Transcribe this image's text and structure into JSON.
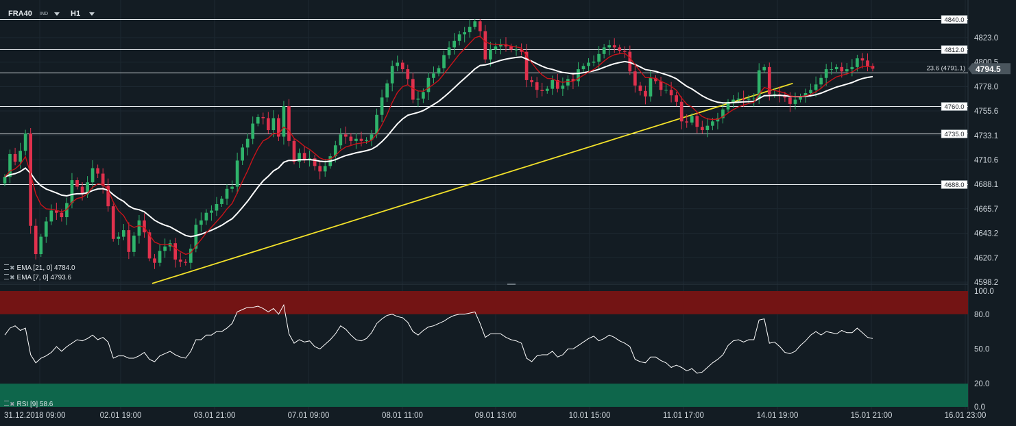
{
  "header": {
    "symbol": "FRA40",
    "symbol_tag": "IND",
    "timeframe": "H1"
  },
  "indicators": {
    "ema21": {
      "label": "EMA [21, 0]",
      "value": "4784.0",
      "color": "#ffffff"
    },
    "ema7": {
      "label": "EMA [7, 0]",
      "value": "4793.6",
      "color": "#c8131a"
    },
    "rsi": {
      "label": "RSI [9]",
      "value": "58.6",
      "color": "#ffffff"
    }
  },
  "colors": {
    "bull": "#2fb36b",
    "bear": "#e0314d",
    "background": "#131c23",
    "trendline": "#f2e12a",
    "overbought_zone": "#731414",
    "oversold_zone": "#0e664b"
  },
  "chart_data": [
    {
      "type": "candlestick",
      "title": "",
      "price_axis_ticks": [
        "4823.0",
        "4800.5",
        "4778.0",
        "4755.6",
        "4733.1",
        "4710.6",
        "4688.1",
        "4665.7",
        "4643.2",
        "4620.7",
        "4598.2"
      ],
      "ylim": [
        4598.2,
        4840.0
      ],
      "current_price": "4794.5",
      "time_axis_labels": [
        "31.12.2018 09:00",
        "02.01 19:00",
        "03.01 21:00",
        "07.01 09:00",
        "08.01 11:00",
        "09.01 13:00",
        "10.01 15:00",
        "11.01 17:00",
        "14.01 19:00",
        "15.01 21:00",
        "16.01 23:00"
      ],
      "horizontal_levels": [
        {
          "label": "4840.0",
          "value": 4840.0
        },
        {
          "label": "4812.0",
          "value": 4812.0
        },
        {
          "label": "4760.0",
          "value": 4760.0
        },
        {
          "label": "4735.0",
          "value": 4735.0
        },
        {
          "label": "4688.0",
          "value": 4688.0
        }
      ],
      "fib_level": {
        "label": "23.6 (4791.1)",
        "value": 4791.1
      },
      "trendline": {
        "start": {
          "bar": 0,
          "value": 4597
        },
        "end": {
          "bar": 126,
          "value": 4781
        }
      },
      "series": [
        {
          "name": "FRA40",
          "close": [
            4695,
            4716,
            4709,
            4719,
            4735,
            4650,
            4624,
            4640,
            4654,
            4664,
            4662,
            4658,
            4671,
            4692,
            4686,
            4679,
            4690,
            4703,
            4698,
            4687,
            4668,
            4638,
            4640,
            4646,
            4626,
            4641,
            4655,
            4644,
            4620,
            4616,
            4627,
            4631,
            4634,
            4619,
            4617,
            4616,
            4629,
            4651,
            4655,
            4662,
            4664,
            4670,
            4675,
            4684,
            4686,
            4710,
            4722,
            4730,
            4744,
            4750,
            4749,
            4738,
            4749,
            4732,
            4760,
            4728,
            4709,
            4717,
            4711,
            4712,
            4705,
            4700,
            4705,
            4714,
            4724,
            4734,
            4732,
            4728,
            4730,
            4728,
            4729,
            4734,
            4752,
            4768,
            4781,
            4797,
            4800,
            4794,
            4785,
            4766,
            4767,
            4773,
            4786,
            4790,
            4795,
            4807,
            4814,
            4820,
            4826,
            4828,
            4833,
            4838,
            4829,
            4803,
            4812,
            4815,
            4817,
            4815,
            4812,
            4812,
            4810,
            4784,
            4782,
            4775,
            4774,
            4776,
            4784,
            4776,
            4779,
            4785,
            4783,
            4794,
            4797,
            4800,
            4801,
            4808,
            4814,
            4816,
            4814,
            4811,
            4810,
            4792,
            4779,
            4774,
            4769,
            4786,
            4783,
            4775,
            4775,
            4770,
            4764,
            4746,
            4745,
            4751,
            4741,
            4738,
            4742,
            4746,
            4749,
            4757,
            4764,
            4766,
            4767,
            4766,
            4767,
            4767,
            4793,
            4796,
            4771,
            4771,
            4770,
            4768,
            4762,
            4766,
            4769,
            4772,
            4775,
            4780,
            4786,
            4794,
            4794,
            4796,
            4792,
            4794,
            4796,
            4804,
            4802,
            4797,
            4794.5
          ]
        },
        {
          "name": "EMA [7, 0]",
          "values": []
        },
        {
          "name": "EMA [21, 0]",
          "values": []
        }
      ]
    },
    {
      "type": "line",
      "title": "",
      "ylim": [
        0,
        100
      ],
      "y_axis_ticks": [
        "100.0",
        "80.0",
        "50.0",
        "20.0",
        "0.0"
      ],
      "zones": {
        "overbought": [
          80,
          100
        ],
        "oversold": [
          0,
          20
        ]
      },
      "series": [
        {
          "name": "RSI [9]",
          "values": [
            62,
            68,
            70,
            66,
            68,
            45,
            38,
            42,
            44,
            47,
            52,
            48,
            52,
            55,
            58,
            57,
            59,
            62,
            58,
            60,
            56,
            42,
            44,
            44,
            42,
            42,
            44,
            47,
            41,
            39,
            44,
            46,
            48,
            45,
            43,
            42,
            48,
            58,
            58,
            62,
            62,
            65,
            65,
            68,
            72,
            82,
            84,
            86,
            86,
            87,
            85,
            82,
            85,
            80,
            88,
            63,
            55,
            58,
            56,
            57,
            52,
            50,
            54,
            58,
            63,
            70,
            67,
            62,
            58,
            57,
            59,
            64,
            72,
            76,
            79,
            80,
            78,
            77,
            73,
            65,
            62,
            66,
            69,
            70,
            72,
            74,
            77,
            79,
            80,
            80,
            81,
            82,
            72,
            60,
            63,
            63,
            63,
            60,
            58,
            57,
            55,
            42,
            39,
            44,
            45,
            45,
            48,
            43,
            45,
            50,
            50,
            53,
            56,
            59,
            61,
            57,
            59,
            62,
            60,
            57,
            55,
            52,
            41,
            39,
            38,
            43,
            43,
            40,
            38,
            34,
            36,
            34,
            31,
            33,
            29,
            30,
            34,
            38,
            41,
            45,
            53,
            57,
            58,
            56,
            58,
            58,
            75,
            76,
            55,
            56,
            52,
            47,
            46,
            48,
            53,
            57,
            62,
            65,
            62,
            65,
            64,
            63,
            66,
            64,
            64,
            68,
            64,
            60,
            59
          ]
        }
      ]
    }
  ]
}
